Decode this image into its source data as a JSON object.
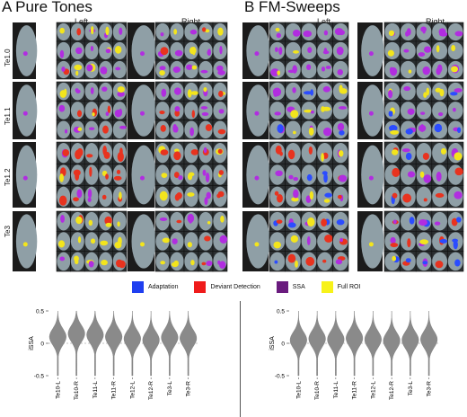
{
  "panels": [
    {
      "title": "A Pure Tones",
      "left": "Left",
      "right": "Right"
    },
    {
      "title": "B FM-Sweeps",
      "left": "Left",
      "right": "Right"
    }
  ],
  "rows": [
    "Te1.0",
    "Te1.1",
    "Te1.2",
    "Te3"
  ],
  "legend": [
    {
      "label": "Adaptation",
      "color": "#1f3ff0"
    },
    {
      "label": "Deviant Detection",
      "color": "#ef1b1b"
    },
    {
      "label": "SSA",
      "color": "#6a1b7e"
    },
    {
      "label": "Full ROI",
      "color": "#f7f21a"
    }
  ],
  "colors": {
    "roi_purple": "#b12de0",
    "brain_gray": "#8f9fa6",
    "brain_dark": "#1b1b1b"
  },
  "chart_data": [
    {
      "type": "violin",
      "panel": "A Pure Tones",
      "ylabel": "iSSA",
      "ylim": [
        -0.5,
        0.5
      ],
      "yticks": [
        -0.5,
        0,
        0.5
      ],
      "categories": [
        "Te10-L",
        "Te10-R",
        "Te11-L",
        "Te11-R",
        "Te12-L",
        "Te12-R",
        "Te3-L",
        "Te3-R"
      ],
      "medians": [
        0.1,
        0.15,
        0.13,
        0.1,
        0.07,
        0.05,
        0.09,
        0.08
      ]
    },
    {
      "type": "violin",
      "panel": "B FM-Sweeps",
      "ylabel": "iSSA",
      "ylim": [
        -0.5,
        0.5
      ],
      "yticks": [
        -0.5,
        0,
        0.5
      ],
      "categories": [
        "Te10-L",
        "Te10-R",
        "Te11-L",
        "Te11-R",
        "Te12-L",
        "Te12-R",
        "Te3-L",
        "Te3-R"
      ],
      "medians": [
        0.05,
        0.07,
        0.06,
        0.08,
        0.06,
        0.04,
        0.05,
        0.06
      ]
    }
  ]
}
